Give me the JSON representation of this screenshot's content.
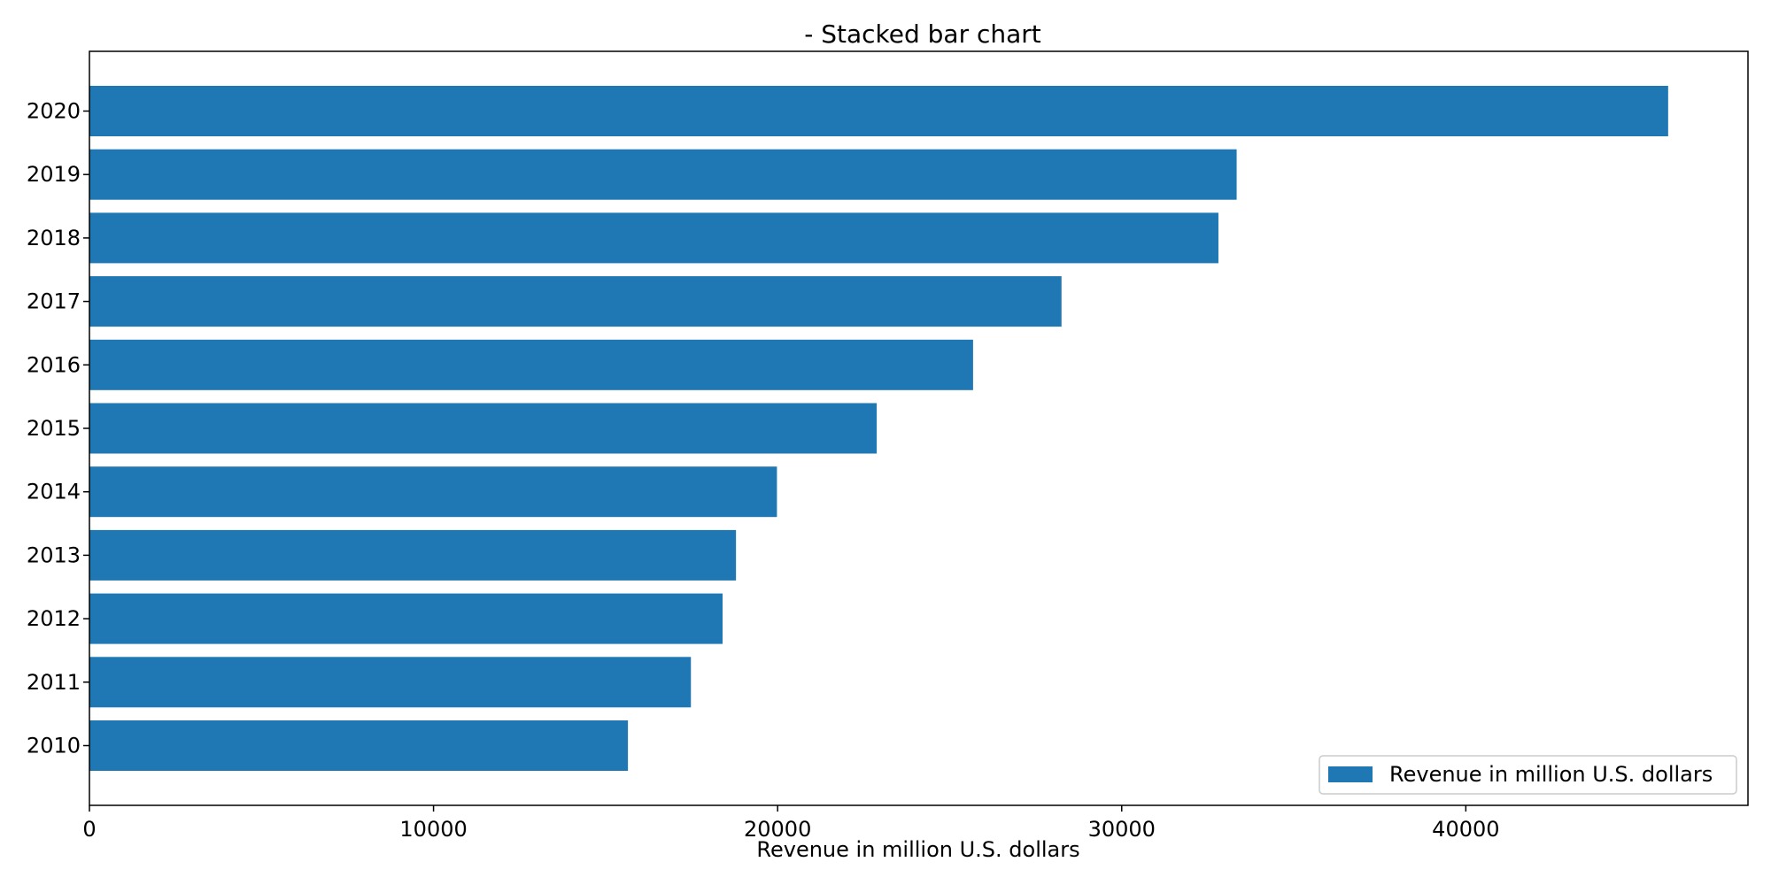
{
  "chart_data": {
    "type": "bar",
    "orientation": "horizontal",
    "title": "- Stacked bar chart",
    "xlabel": "Revenue in million U.S. dollars",
    "ylabel": "",
    "categories": [
      "2010",
      "2011",
      "2012",
      "2013",
      "2014",
      "2015",
      "2016",
      "2017",
      "2018",
      "2019",
      "2020"
    ],
    "series": [
      {
        "name": "Revenue in million U.S. dollars",
        "color": "#1f77b4",
        "values": [
          15650,
          17480,
          18400,
          18790,
          19980,
          22880,
          25680,
          28250,
          32810,
          33340,
          45880
        ]
      }
    ],
    "xlim": [
      0,
      48200
    ],
    "xticks": [
      0,
      10000,
      20000,
      30000,
      40000
    ],
    "xtick_labels": [
      "0",
      "10000",
      "20000",
      "30000",
      "40000"
    ],
    "grid": false,
    "legend_position": "bottom-right"
  }
}
